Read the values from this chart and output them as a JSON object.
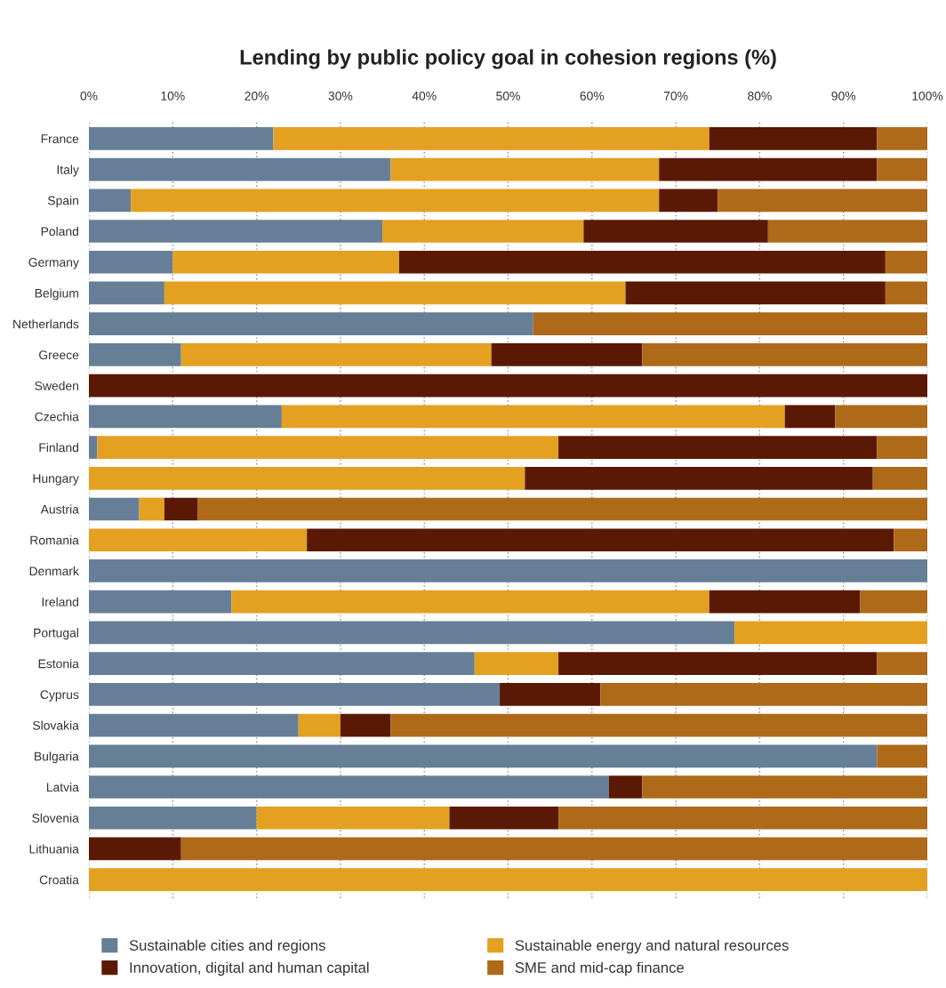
{
  "chart_data": {
    "type": "bar",
    "orientation": "horizontal",
    "stacked": true,
    "title": "Lending by public policy goal in cohesion regions (%)",
    "categories": [
      "France",
      "Italy",
      "Spain",
      "Poland",
      "Germany",
      "Belgium",
      "Netherlands",
      "Greece",
      "Sweden",
      "Czechia",
      "Finland",
      "Hungary",
      "Austria",
      "Romania",
      "Denmark",
      "Ireland",
      "Portugal",
      "Estonia",
      "Cyprus",
      "Slovakia",
      "Bulgaria",
      "Latvia",
      "Slovenia",
      "Lithuania",
      "Croatia"
    ],
    "series": [
      {
        "name": "Sustainable cities and regions",
        "color": "#667f97",
        "values": [
          22,
          36,
          5,
          35,
          10,
          9,
          53,
          11,
          0,
          23,
          1,
          0,
          6,
          0,
          100,
          17,
          77,
          46,
          49,
          25,
          94,
          62,
          20,
          0,
          0
        ]
      },
      {
        "name": "Sustainable energy and natural resources",
        "color": "#e4a021",
        "values": [
          52,
          32,
          63,
          24,
          27,
          55,
          0,
          37,
          0,
          60,
          55,
          52,
          3,
          26,
          0,
          57,
          23,
          10,
          0,
          5,
          0,
          0,
          23,
          0,
          100
        ]
      },
      {
        "name": "Innovation, digital and human capital",
        "color": "#5a1905",
        "values": [
          20,
          26,
          7,
          22,
          58,
          31,
          0,
          18,
          100,
          6,
          38,
          41.5,
          4,
          70,
          0,
          18,
          0,
          38,
          12,
          6,
          0,
          4,
          13,
          11,
          0
        ]
      },
      {
        "name": "SME and mid-cap finance",
        "color": "#ae6a19",
        "values": [
          6,
          6,
          25,
          19,
          5,
          5,
          47,
          34,
          0,
          11,
          6,
          6.5,
          87,
          4,
          0,
          8,
          0,
          6,
          39,
          64,
          6,
          34,
          44,
          89,
          0
        ]
      }
    ],
    "xlim": [
      0,
      100
    ],
    "xticks": [
      {
        "value": 0,
        "label": "0%"
      },
      {
        "value": 10,
        "label": "10%"
      },
      {
        "value": 20,
        "label": "20%"
      },
      {
        "value": 30,
        "label": "30%"
      },
      {
        "value": 40,
        "label": "40%"
      },
      {
        "value": 50,
        "label": "50%"
      },
      {
        "value": 60,
        "label": "60%"
      },
      {
        "value": 70,
        "label": "70%"
      },
      {
        "value": 80,
        "label": "80%"
      },
      {
        "value": 90,
        "label": "90%"
      },
      {
        "value": 100,
        "label": "100%"
      }
    ],
    "grid": "x",
    "legend": "bottom"
  }
}
